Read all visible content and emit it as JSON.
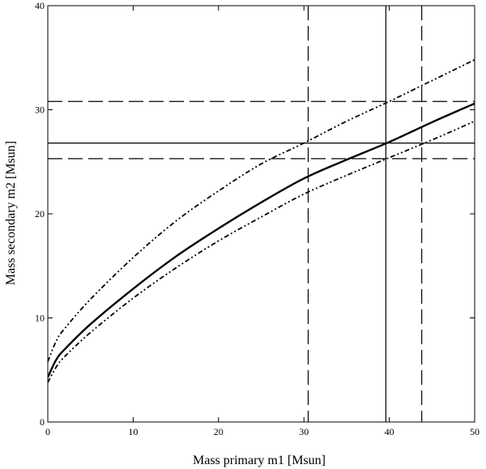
{
  "chart_data": {
    "type": "line",
    "xlabel": "Mass primary m1 [Msun]",
    "ylabel": "Mass secondary m2 [Msun]",
    "xlim": [
      0,
      50
    ],
    "ylim": [
      0,
      40
    ],
    "xticks": [
      0,
      10,
      20,
      30,
      40,
      50
    ],
    "yticks": [
      0,
      10,
      20,
      30,
      40
    ],
    "grid": false,
    "legend": "none",
    "series": [
      {
        "style": "solid-thick",
        "x": [
          0,
          1,
          2,
          5,
          10,
          15,
          20,
          25,
          30,
          35,
          40,
          45,
          50
        ],
        "y": [
          4.3,
          6.0,
          7.0,
          9.4,
          12.8,
          15.9,
          18.6,
          21.1,
          23.4,
          25.2,
          26.9,
          28.8,
          30.6
        ]
      },
      {
        "style": "dash-dot-upper",
        "x": [
          0,
          1,
          2,
          5,
          10,
          15,
          20,
          25,
          30,
          35,
          40,
          45,
          50
        ],
        "y": [
          5.8,
          7.8,
          9.0,
          11.8,
          15.8,
          19.3,
          22.2,
          24.8,
          26.8,
          28.9,
          30.8,
          32.8,
          34.8
        ]
      },
      {
        "style": "dash-dot-lower",
        "x": [
          0,
          1,
          2,
          5,
          10,
          15,
          20,
          25,
          30,
          35,
          40,
          45,
          50
        ],
        "y": [
          3.8,
          5.3,
          6.3,
          8.6,
          11.9,
          14.8,
          17.4,
          19.7,
          21.9,
          23.7,
          25.4,
          27.1,
          28.9
        ]
      }
    ],
    "reference_lines": {
      "vertical": [
        {
          "x": 30.5,
          "style": "dashed"
        },
        {
          "x": 39.6,
          "style": "solid"
        },
        {
          "x": 43.8,
          "style": "dashed"
        }
      ],
      "horizontal": [
        {
          "y": 30.8,
          "style": "dashed"
        },
        {
          "y": 26.8,
          "style": "solid"
        },
        {
          "y": 25.3,
          "style": "dashed"
        }
      ]
    }
  }
}
